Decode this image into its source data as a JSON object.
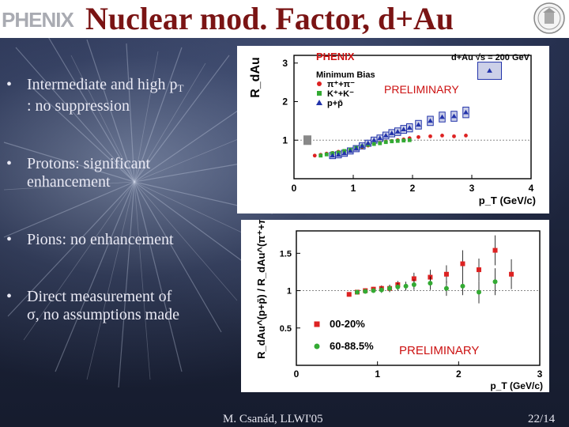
{
  "header": {
    "logo_text": "PHENIX",
    "title": "Nuclear mod. Factor, d+Au"
  },
  "bullets": [
    {
      "line1": "Intermediate and high p",
      "line1_sub": "T",
      "line2": ": no suppression"
    },
    {
      "line1": "Protons: significant",
      "line2": "enhancement"
    },
    {
      "line1": "Pions: no enhancement",
      "line2": ""
    },
    {
      "line1": "Direct measurement of",
      "line2_symbol": "σ",
      "line2": ", no assumptions made"
    }
  ],
  "footer": {
    "author": "M. Csanád, LLWI'05",
    "page": "22/14"
  },
  "chart_data": [
    {
      "type": "scatter",
      "title": "PHENIX",
      "subtitle": "d+Au √s = 200 GeV",
      "ylabel": "R_dAu",
      "xlabel": "p_T (GeV/c)",
      "xlim": [
        0,
        4
      ],
      "ylim": [
        0,
        3.2
      ],
      "xticks": [
        "0",
        "1",
        "2",
        "3",
        "4"
      ],
      "yticks": [
        "1",
        "2",
        "3"
      ],
      "reference_line": 1,
      "annotation": "PRELIMINARY",
      "legend_title": "Minimum Bias",
      "legend": [
        {
          "name": "π⁺+π⁻",
          "color": "#dd2222",
          "marker": "circle"
        },
        {
          "name": "K⁺+K⁻",
          "color": "#33aa33",
          "marker": "square"
        },
        {
          "name": "p+p̄",
          "color": "#2233aa",
          "marker": "triangle"
        }
      ],
      "series": [
        {
          "name": "π⁺+π⁻",
          "color": "#dd2222",
          "x": [
            0.35,
            0.45,
            0.55,
            0.65,
            0.75,
            0.85,
            0.95,
            1.05,
            1.15,
            1.25,
            1.35,
            1.45,
            1.55,
            1.65,
            1.75,
            1.85,
            1.95,
            2.1,
            2.3,
            2.5,
            2.7,
            2.9
          ],
          "y": [
            0.6,
            0.62,
            0.65,
            0.67,
            0.7,
            0.72,
            0.74,
            0.78,
            0.82,
            0.86,
            0.9,
            0.93,
            0.96,
            0.98,
            1.0,
            1.02,
            1.05,
            1.08,
            1.1,
            1.12,
            1.1,
            1.12
          ]
        },
        {
          "name": "K⁺+K⁻",
          "color": "#33aa33",
          "x": [
            0.45,
            0.55,
            0.65,
            0.75,
            0.85,
            0.95,
            1.05,
            1.15,
            1.25,
            1.35,
            1.45,
            1.55,
            1.65,
            1.75,
            1.85,
            1.95
          ],
          "y": [
            0.6,
            0.63,
            0.66,
            0.68,
            0.72,
            0.75,
            0.8,
            0.84,
            0.88,
            0.9,
            0.92,
            0.95,
            0.97,
            0.98,
            0.99,
            1.0
          ]
        },
        {
          "name": "p+p̄",
          "color": "#2233aa",
          "x": [
            0.65,
            0.75,
            0.85,
            0.95,
            1.05,
            1.15,
            1.25,
            1.35,
            1.45,
            1.55,
            1.65,
            1.75,
            1.85,
            1.95,
            2.1,
            2.3,
            2.5,
            2.7,
            2.9,
            3.3
          ],
          "y": [
            0.6,
            0.62,
            0.66,
            0.72,
            0.78,
            0.85,
            0.92,
            1.0,
            1.05,
            1.12,
            1.18,
            1.22,
            1.28,
            1.32,
            1.4,
            1.5,
            1.6,
            1.62,
            1.72,
            2.8
          ]
        }
      ]
    },
    {
      "type": "scatter",
      "ylabel": "R_dAu^(p+p̄) / R_dAu^(π⁺+π⁻)",
      "xlabel": "p_T (GeV/c)",
      "xlim": [
        0,
        3
      ],
      "ylim": [
        0,
        1.8
      ],
      "xticks": [
        "0",
        "1",
        "2",
        "3"
      ],
      "yticks": [
        "0.5",
        "1",
        "1.5"
      ],
      "reference_line": 1,
      "annotation": "PRELIMINARY",
      "legend": [
        {
          "name": "00-20%",
          "color": "#dd2222",
          "marker": "square"
        },
        {
          "name": "60-88.5%",
          "color": "#33aa33",
          "marker": "circle"
        }
      ],
      "series": [
        {
          "name": "00-20%",
          "color": "#dd2222",
          "x": [
            0.65,
            0.75,
            0.85,
            0.95,
            1.05,
            1.15,
            1.25,
            1.45,
            1.65,
            1.85,
            2.05,
            2.25,
            2.45,
            2.65
          ],
          "y": [
            0.95,
            0.98,
            1.0,
            1.02,
            1.03,
            1.03,
            1.08,
            1.16,
            1.18,
            1.22,
            1.36,
            1.28,
            1.54,
            1.22
          ],
          "err": [
            0.03,
            0.03,
            0.03,
            0.03,
            0.04,
            0.04,
            0.05,
            0.08,
            0.1,
            0.12,
            0.18,
            0.15,
            0.2,
            0.2
          ]
        },
        {
          "name": "60-88.5%",
          "color": "#33aa33",
          "x": [
            0.75,
            0.85,
            0.95,
            1.05,
            1.15,
            1.25,
            1.35,
            1.45,
            1.65,
            1.85,
            2.05,
            2.25,
            2.45
          ],
          "y": [
            0.98,
            0.99,
            1.0,
            1.01,
            1.03,
            1.05,
            1.06,
            1.08,
            1.1,
            1.03,
            1.06,
            0.98,
            1.12
          ],
          "err": [
            0.03,
            0.03,
            0.03,
            0.04,
            0.05,
            0.05,
            0.06,
            0.07,
            0.09,
            0.1,
            0.12,
            0.15,
            0.18
          ]
        }
      ]
    }
  ]
}
